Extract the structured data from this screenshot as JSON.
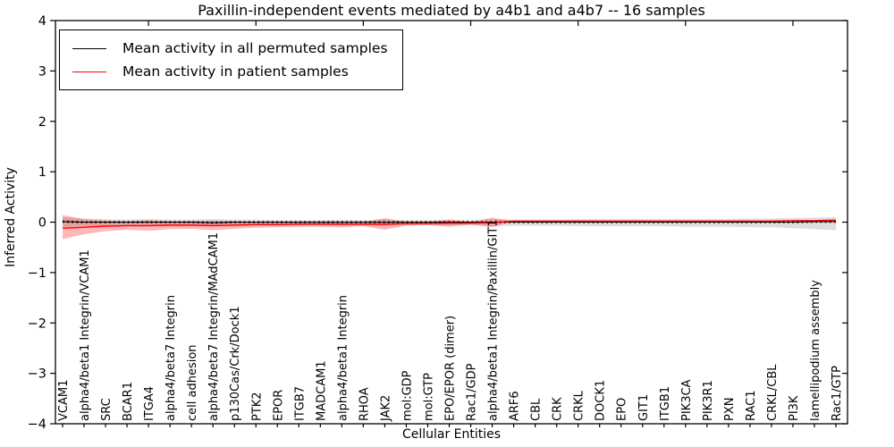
{
  "chart_data": {
    "type": "line",
    "title": "Paxillin-independent events mediated by a4b1 and a4b7 -- 16 samples",
    "xlabel": "Cellular Entities",
    "ylabel": "Inferred Activity",
    "ylim": [
      -4,
      4
    ],
    "yticks": [
      "4",
      "3",
      "2",
      "1",
      "0",
      "−1",
      "−2",
      "−3",
      "−4"
    ],
    "grid": false,
    "legend_position": "upper left",
    "categories": [
      "VCAM1",
      "alpha4/beta1 Integrin/VCAM1",
      "SRC",
      "BCAR1",
      "ITGA4",
      "alpha4/beta7 Integrin",
      "cell adhesion",
      "alpha4/beta7 Integrin/MAdCAM1",
      "p130Cas/Crk/Dock1",
      "PTK2",
      "EPOR",
      "ITGB7",
      "MADCAM1",
      "alpha4/beta1 Integrin",
      "RHOA",
      "JAK2",
      "mol:GDP",
      "mol:GTP",
      "EPO/EPOR (dimer)",
      "Rac1/GDP",
      "alpha4/beta1 Integrin/Paxillin/GIT1",
      "ARF6",
      "CBL",
      "CRK",
      "CRKL",
      "DOCK1",
      "EPO",
      "GIT1",
      "ITGB1",
      "PIK3CA",
      "PIK3R1",
      "PXN",
      "RAC1",
      "CRKL/CBL",
      "PI3K",
      "lamellipodium assembly",
      "Rac1/GTP"
    ],
    "series": [
      {
        "name": "Mean activity in all permuted samples",
        "color": "#000000",
        "values": [
          0.01,
          0.0,
          0.0,
          0.0,
          0.0,
          0.0,
          0.0,
          -0.01,
          0.0,
          0.0,
          0.0,
          0.0,
          0.0,
          0.0,
          0.0,
          0.0,
          0.0,
          0.0,
          0.0,
          0.0,
          0.0,
          0.0,
          0.0,
          0.0,
          0.0,
          0.0,
          0.0,
          0.0,
          0.0,
          0.0,
          0.0,
          0.0,
          0.0,
          0.0,
          0.0,
          0.01,
          0.01
        ]
      },
      {
        "name": "Mean activity in patient samples",
        "color": "#ff0000",
        "values": [
          -0.12,
          -0.1,
          -0.08,
          -0.07,
          -0.07,
          -0.06,
          -0.06,
          -0.07,
          -0.06,
          -0.05,
          -0.05,
          -0.04,
          -0.04,
          -0.04,
          -0.04,
          -0.04,
          -0.03,
          -0.03,
          -0.02,
          -0.02,
          -0.01,
          0.02,
          0.02,
          0.02,
          0.02,
          0.02,
          0.02,
          0.02,
          0.02,
          0.02,
          0.02,
          0.02,
          0.02,
          0.02,
          0.03,
          0.03,
          0.04
        ]
      }
    ],
    "bands": [
      {
        "name": "permuted-samples-range",
        "color": "#000000",
        "opacity": 0.13,
        "upper": [
          0.1,
          0.07,
          0.06,
          0.05,
          0.06,
          0.05,
          0.05,
          0.06,
          0.05,
          0.05,
          0.04,
          0.04,
          0.04,
          0.05,
          0.04,
          0.06,
          0.04,
          0.04,
          0.05,
          0.04,
          0.06,
          0.05,
          0.05,
          0.05,
          0.06,
          0.06,
          0.06,
          0.06,
          0.06,
          0.06,
          0.06,
          0.06,
          0.07,
          0.07,
          0.08,
          0.09,
          0.1
        ],
        "lower": [
          -0.1,
          -0.08,
          -0.07,
          -0.06,
          -0.07,
          -0.06,
          -0.06,
          -0.08,
          -0.06,
          -0.06,
          -0.05,
          -0.05,
          -0.05,
          -0.06,
          -0.05,
          -0.08,
          -0.05,
          -0.05,
          -0.06,
          -0.05,
          -0.08,
          -0.07,
          -0.07,
          -0.07,
          -0.08,
          -0.08,
          -0.08,
          -0.08,
          -0.08,
          -0.09,
          -0.09,
          -0.09,
          -0.1,
          -0.1,
          -0.12,
          -0.14,
          -0.16
        ]
      },
      {
        "name": "patient-samples-range",
        "color": "#ff0000",
        "opacity": 0.28,
        "upper": [
          0.14,
          0.06,
          0.03,
          0.02,
          0.04,
          0.02,
          0.02,
          0.03,
          0.02,
          0.01,
          0.01,
          0.01,
          0.01,
          0.01,
          0.0,
          0.08,
          0.0,
          0.0,
          0.05,
          0.0,
          0.09,
          0.02,
          0.02,
          0.02,
          0.02,
          0.02,
          0.02,
          0.02,
          0.02,
          0.02,
          0.02,
          0.02,
          0.02,
          0.02,
          0.03,
          0.03,
          0.04
        ],
        "lower": [
          -0.34,
          -0.24,
          -0.18,
          -0.15,
          -0.17,
          -0.14,
          -0.13,
          -0.16,
          -0.13,
          -0.11,
          -0.1,
          -0.09,
          -0.09,
          -0.1,
          -0.08,
          -0.15,
          -0.07,
          -0.06,
          -0.09,
          -0.05,
          -0.1,
          0.02,
          0.02,
          0.02,
          0.02,
          0.02,
          0.02,
          0.02,
          0.02,
          0.02,
          0.02,
          0.02,
          0.02,
          0.02,
          0.03,
          0.03,
          0.04
        ]
      }
    ]
  }
}
